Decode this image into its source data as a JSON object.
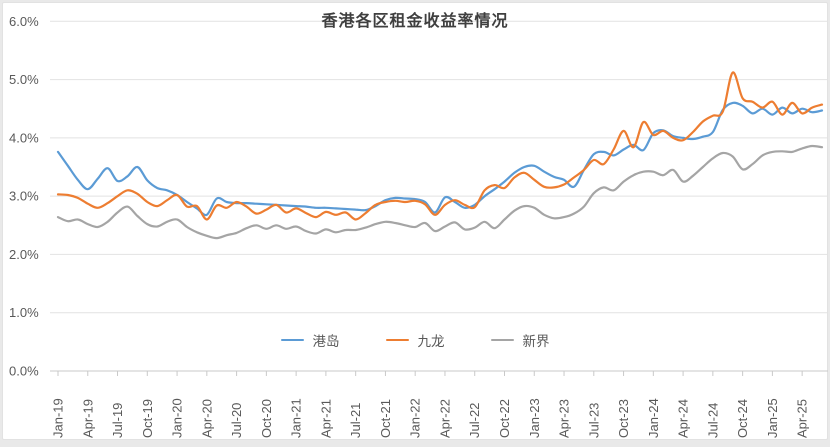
{
  "title": "香港各区租金收益率情况",
  "legend": [
    {
      "id": "hong-kong-island",
      "label": "港岛",
      "color": "#5b9bd5"
    },
    {
      "id": "kowloon",
      "label": "九龙",
      "color": "#ed7d31"
    },
    {
      "id": "new-territories",
      "label": "新界",
      "color": "#a5a5a5"
    }
  ],
  "colors": {
    "title_text": "#3f3f3f",
    "axis_text": "#595959",
    "gridline": "#e2e2e2",
    "axis_line": "#c9c9c9"
  },
  "chart_data": {
    "type": "line",
    "title": "香港各区租金收益率情况",
    "xlabel": "",
    "ylabel": "",
    "ylim": [
      0,
      6
    ],
    "y_ticks": [
      0,
      1,
      2,
      3,
      4,
      5,
      6
    ],
    "y_tick_labels": [
      "0.0%",
      "1.0%",
      "2.0%",
      "3.0%",
      "4.0%",
      "5.0%",
      "6.0%"
    ],
    "grid": "horizontal",
    "legend_position": "bottom-center",
    "x_tick_labels": [
      "Jan-19",
      "Apr-19",
      "Jul-19",
      "Oct-19",
      "Jan-20",
      "Apr-20",
      "Jul-20",
      "Oct-20",
      "Jan-21",
      "Apr-21",
      "Jul-21",
      "Oct-21",
      "Jan-22",
      "Apr-22",
      "Jul-22",
      "Oct-22",
      "Jan-23",
      "Apr-23",
      "Jul-23",
      "Oct-23",
      "Jan-24",
      "Apr-24",
      "Jul-24",
      "Oct-24",
      "Jan-25",
      "Apr-25"
    ],
    "x": [
      "Jan-19",
      "Feb-19",
      "Mar-19",
      "Apr-19",
      "May-19",
      "Jun-19",
      "Jul-19",
      "Aug-19",
      "Sep-19",
      "Oct-19",
      "Nov-19",
      "Dec-19",
      "Jan-20",
      "Feb-20",
      "Mar-20",
      "Apr-20",
      "May-20",
      "Jun-20",
      "Jul-20",
      "Aug-20",
      "Sep-20",
      "Oct-20",
      "Nov-20",
      "Dec-20",
      "Jan-21",
      "Feb-21",
      "Mar-21",
      "Apr-21",
      "May-21",
      "Jun-21",
      "Jul-21",
      "Aug-21",
      "Sep-21",
      "Oct-21",
      "Nov-21",
      "Dec-21",
      "Jan-22",
      "Feb-22",
      "Mar-22",
      "Apr-22",
      "May-22",
      "Jun-22",
      "Jul-22",
      "Aug-22",
      "Sep-22",
      "Oct-22",
      "Nov-22",
      "Dec-22",
      "Jan-23",
      "Feb-23",
      "Mar-23",
      "Apr-23",
      "May-23",
      "Jun-23",
      "Jul-23",
      "Aug-23",
      "Sep-23",
      "Oct-23",
      "Nov-23",
      "Dec-23",
      "Jan-24",
      "Feb-24",
      "Mar-24",
      "Apr-24",
      "May-24",
      "Jun-24",
      "Jul-24",
      "Aug-24",
      "Sep-24",
      "Oct-24",
      "Nov-24",
      "Dec-24",
      "Jan-25",
      "Feb-25",
      "Mar-25",
      "Apr-25",
      "May-25",
      "Jun-25"
    ],
    "series": [
      {
        "name": "港岛",
        "color": "#5b9bd5",
        "values": [
          3.76,
          3.52,
          3.28,
          3.12,
          3.3,
          3.48,
          3.26,
          3.34,
          3.5,
          3.27,
          3.14,
          3.1,
          3.02,
          2.9,
          2.79,
          2.68,
          2.96,
          2.9,
          2.88,
          2.88,
          2.87,
          2.86,
          2.85,
          2.84,
          2.83,
          2.82,
          2.8,
          2.8,
          2.79,
          2.78,
          2.77,
          2.76,
          2.83,
          2.93,
          2.97,
          2.96,
          2.95,
          2.9,
          2.72,
          2.98,
          2.9,
          2.8,
          2.85,
          3.0,
          3.12,
          3.25,
          3.4,
          3.5,
          3.52,
          3.42,
          3.33,
          3.28,
          3.16,
          3.45,
          3.72,
          3.76,
          3.7,
          3.8,
          3.88,
          3.79,
          4.08,
          4.13,
          4.03,
          4.0,
          3.98,
          4.02,
          4.1,
          4.48,
          4.6,
          4.55,
          4.42,
          4.5,
          4.4,
          4.52,
          4.42,
          4.5,
          4.44,
          4.47
        ]
      },
      {
        "name": "九龙",
        "color": "#ed7d31",
        "values": [
          3.03,
          3.02,
          2.97,
          2.87,
          2.8,
          2.88,
          3.0,
          3.1,
          3.04,
          2.9,
          2.83,
          2.93,
          3.02,
          2.82,
          2.83,
          2.6,
          2.84,
          2.8,
          2.9,
          2.82,
          2.7,
          2.77,
          2.85,
          2.72,
          2.79,
          2.71,
          2.64,
          2.73,
          2.68,
          2.72,
          2.6,
          2.71,
          2.85,
          2.9,
          2.92,
          2.9,
          2.92,
          2.86,
          2.68,
          2.85,
          2.93,
          2.85,
          2.81,
          3.1,
          3.19,
          3.14,
          3.32,
          3.4,
          3.28,
          3.16,
          3.15,
          3.2,
          3.32,
          3.45,
          3.62,
          3.55,
          3.8,
          4.12,
          3.84,
          4.27,
          4.05,
          4.12,
          4.0,
          3.96,
          4.1,
          4.28,
          4.38,
          4.45,
          5.12,
          4.68,
          4.62,
          4.52,
          4.62,
          4.4,
          4.6,
          4.42,
          4.52,
          4.57
        ]
      },
      {
        "name": "新界",
        "color": "#a5a5a5",
        "values": [
          2.64,
          2.57,
          2.6,
          2.52,
          2.47,
          2.56,
          2.72,
          2.82,
          2.66,
          2.52,
          2.48,
          2.56,
          2.6,
          2.47,
          2.38,
          2.32,
          2.28,
          2.33,
          2.37,
          2.45,
          2.5,
          2.44,
          2.5,
          2.44,
          2.48,
          2.4,
          2.36,
          2.43,
          2.38,
          2.42,
          2.42,
          2.46,
          2.52,
          2.56,
          2.54,
          2.5,
          2.47,
          2.54,
          2.4,
          2.48,
          2.55,
          2.43,
          2.46,
          2.56,
          2.45,
          2.6,
          2.75,
          2.83,
          2.8,
          2.68,
          2.62,
          2.64,
          2.7,
          2.82,
          3.05,
          3.15,
          3.1,
          3.25,
          3.36,
          3.42,
          3.42,
          3.36,
          3.45,
          3.25,
          3.35,
          3.5,
          3.65,
          3.74,
          3.68,
          3.46,
          3.55,
          3.7,
          3.76,
          3.77,
          3.76,
          3.82,
          3.86,
          3.84
        ]
      }
    ]
  }
}
